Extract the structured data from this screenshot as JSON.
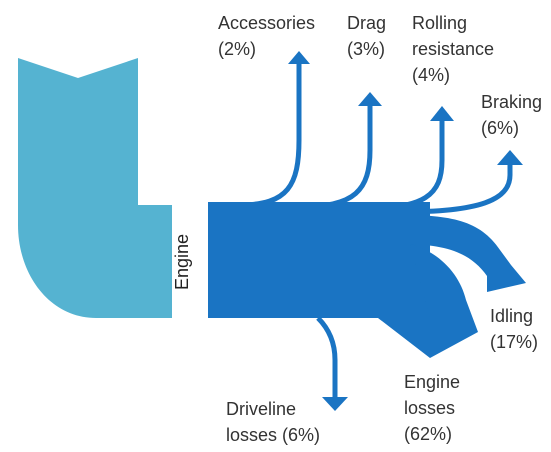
{
  "colors": {
    "input_flow": "#55b3d1",
    "engine_flow": "#1a74c3"
  },
  "engine": {
    "label": "Engine"
  },
  "flows": [
    {
      "id": "accessories",
      "line1": "Accessories",
      "line2": "(2%)",
      "percent": 2
    },
    {
      "id": "drag",
      "line1": "Drag",
      "line2": "(3%)",
      "percent": 3
    },
    {
      "id": "rolling",
      "line1": "Rolling",
      "line2": "resistance",
      "line3": "(4%)",
      "percent": 4
    },
    {
      "id": "braking",
      "line1": "Braking",
      "line2": "(6%)",
      "percent": 6
    },
    {
      "id": "idling",
      "line1": "Idling",
      "line2": "(17%)",
      "percent": 17
    },
    {
      "id": "engine_losses",
      "line1": "Engine",
      "line2": "losses",
      "line3": "(62%)",
      "percent": 62
    },
    {
      "id": "driveline",
      "line1": "Driveline",
      "line2": "losses (6%)",
      "percent": 6
    }
  ]
}
